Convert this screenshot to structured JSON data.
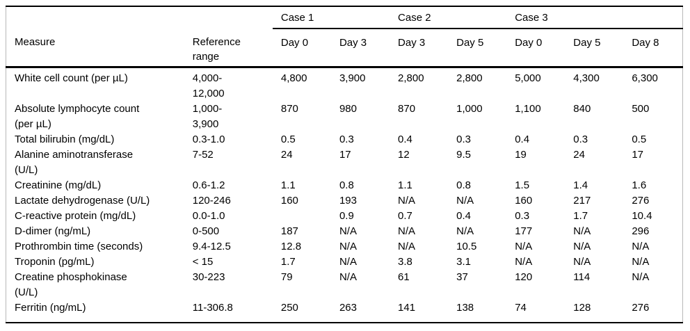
{
  "table": {
    "case_headers": [
      {
        "label": "Case 1",
        "span": 2
      },
      {
        "label": "Case 2",
        "span": 2
      },
      {
        "label": "Case 3",
        "span": 3
      }
    ],
    "column_headers": [
      "Measure",
      "Reference\nrange",
      "Day 0",
      "Day 3",
      "Day 3",
      "Day 5",
      "Day 0",
      "Day 5",
      "Day 8"
    ],
    "rows": [
      {
        "measure": "White cell count (per µL)",
        "reference": "4,000-\n12,000",
        "values": [
          "4,800",
          "3,900",
          "2,800",
          "2,800",
          "5,000",
          "4,300",
          "6,300"
        ]
      },
      {
        "measure": "Absolute lymphocyte count\n(per µL)",
        "reference": "1,000-\n3,900",
        "values": [
          "870",
          "980",
          "870",
          "1,000",
          "1,100",
          "840",
          "500"
        ]
      },
      {
        "measure": "Total bilirubin (mg/dL)",
        "reference": "0.3-1.0",
        "values": [
          "0.5",
          "0.3",
          "0.4",
          "0.3",
          "0.4",
          "0.3",
          "0.5"
        ]
      },
      {
        "measure": "Alanine aminotransferase\n(U/L)",
        "reference": "7-52",
        "values": [
          "24",
          "17",
          "12",
          "9.5",
          "19",
          "24",
          "17"
        ]
      },
      {
        "measure": "Creatinine (mg/dL)",
        "reference": "0.6-1.2",
        "values": [
          "1.1",
          "0.8",
          "1.1",
          "0.8",
          "1.5",
          "1.4",
          "1.6"
        ]
      },
      {
        "measure": "Lactate dehydrogenase (U/L)",
        "reference": "120-246",
        "values": [
          "160",
          "193",
          "N/A",
          "N/A",
          "160",
          "217",
          "276"
        ]
      },
      {
        "measure": "C-reactive protein (mg/dL)",
        "reference": "0.0-1.0",
        "values": [
          "",
          "0.9",
          "0.7",
          "0.4",
          "0.3",
          "1.7",
          "10.4"
        ]
      },
      {
        "measure": "D-dimer (ng/mL)",
        "reference": "0-500",
        "values": [
          "187",
          "N/A",
          "N/A",
          "N/A",
          "177",
          "N/A",
          "296"
        ]
      },
      {
        "measure": "Prothrombin time (seconds)",
        "reference": "9.4-12.5",
        "values": [
          "12.8",
          "N/A",
          "N/A",
          "10.5",
          "N/A",
          "N/A",
          "N/A"
        ]
      },
      {
        "measure": "Troponin (pg/mL)",
        "reference": "< 15",
        "values": [
          "1.7",
          "N/A",
          "3.8",
          "3.1",
          "N/A",
          "N/A",
          "N/A"
        ]
      },
      {
        "measure": "Creatine phosphokinase\n(U/L)",
        "reference": "30-223",
        "values": [
          "79",
          "N/A",
          "61",
          "37",
          "120",
          "114",
          "N/A"
        ]
      },
      {
        "measure": "Ferritin (ng/mL)",
        "reference": "11-306.8",
        "values": [
          "250",
          "263",
          "141",
          "138",
          "74",
          "128",
          "276"
        ]
      }
    ]
  }
}
